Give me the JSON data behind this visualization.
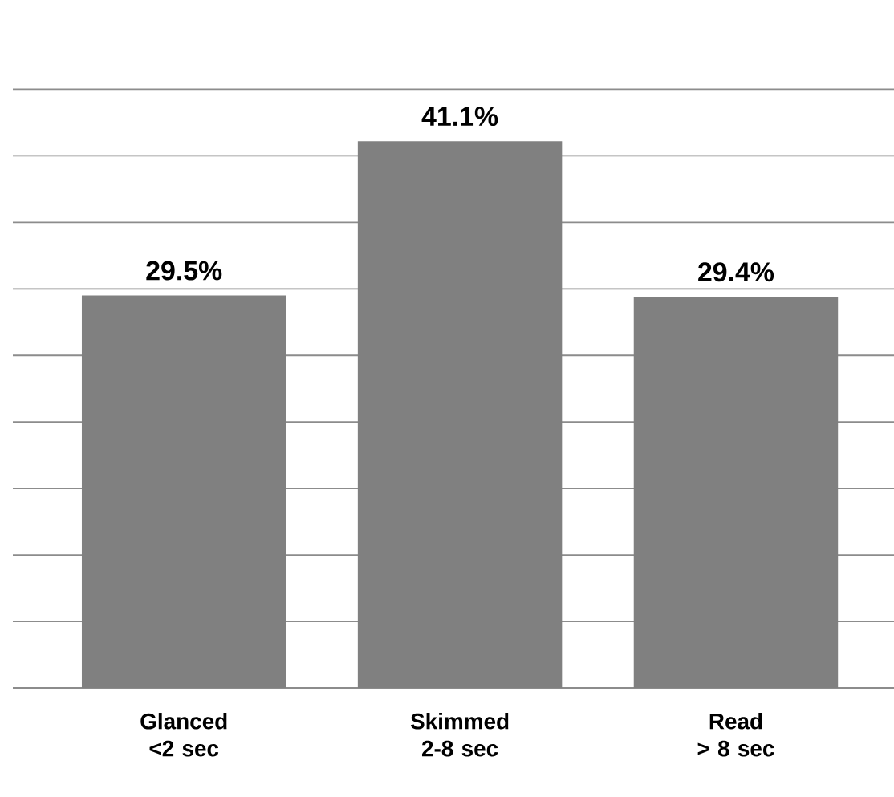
{
  "chart_data": {
    "type": "bar",
    "categories": [
      "Glanced\n<2 sec",
      "Skimmed\n2-8 sec",
      "Read\n> 8 sec"
    ],
    "values": [
      29.5,
      41.1,
      29.4
    ],
    "value_labels": [
      "29.5%",
      "41.1%",
      "29.4%"
    ],
    "color": "#808080",
    "grid": "y",
    "tick_labels": "x"
  }
}
